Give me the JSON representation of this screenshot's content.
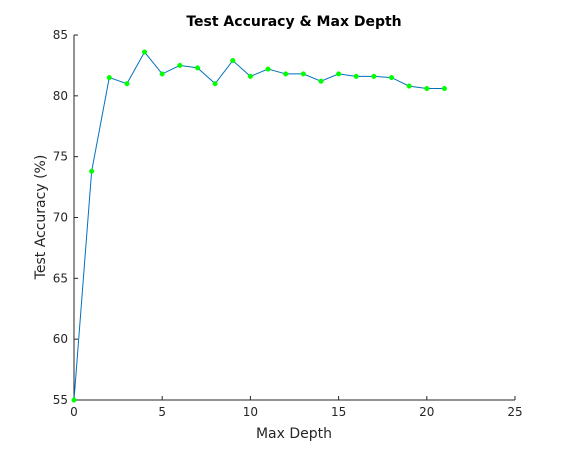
{
  "chart_data": {
    "type": "line",
    "title": "Test Accuracy & Max Depth",
    "xlabel": "Max Depth",
    "ylabel": "Test Accuracy (%)",
    "xlim": [
      0,
      25
    ],
    "ylim": [
      55,
      85
    ],
    "xticks": [
      0,
      5,
      10,
      15,
      20,
      25
    ],
    "yticks": [
      55,
      60,
      65,
      70,
      75,
      80,
      85
    ],
    "grid": false,
    "line_color": "#0072BD",
    "marker_color": "#00FF00",
    "series": [
      {
        "x": [
          0,
          1,
          2,
          3,
          4,
          5,
          6,
          7,
          8,
          9,
          10,
          11,
          12,
          13,
          14,
          15,
          16,
          17,
          18,
          19,
          20,
          21
        ],
        "y": [
          55.0,
          73.8,
          81.5,
          81.0,
          83.6,
          81.8,
          82.5,
          82.3,
          81.0,
          82.9,
          81.6,
          82.2,
          81.8,
          81.8,
          81.2,
          81.8,
          81.6,
          81.6,
          81.5,
          80.8,
          80.6,
          80.6
        ]
      }
    ]
  }
}
